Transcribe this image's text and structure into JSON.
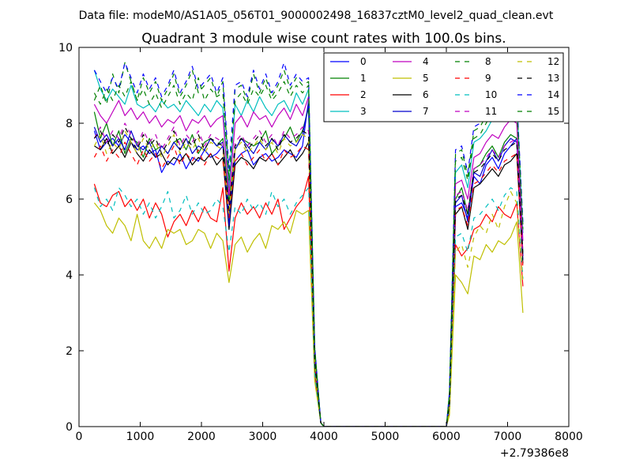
{
  "chart_data": {
    "type": "line",
    "suptitle": "Data file: modeM0/AS1A05_056T01_9000002498_16837cztM0_level2_quad_clean.evt",
    "title": "Quadrant 3 module wise count rates with 100.0s bins.",
    "xlabel": "",
    "ylabel": "",
    "x_offset_label": "+2.79386e8",
    "xlim": [
      0,
      8000
    ],
    "ylim": [
      0,
      10
    ],
    "x_ticks": [
      0,
      1000,
      2000,
      3000,
      4000,
      5000,
      6000,
      7000,
      8000
    ],
    "y_ticks": [
      0,
      2,
      4,
      6,
      8,
      10
    ],
    "grid": false,
    "legend": {
      "position": "top-right",
      "columns": 4
    },
    "x": [
      250,
      350,
      450,
      550,
      650,
      750,
      850,
      950,
      1050,
      1150,
      1250,
      1350,
      1450,
      1550,
      1650,
      1750,
      1850,
      1950,
      2050,
      2150,
      2250,
      2350,
      2450,
      2550,
      2650,
      2750,
      2850,
      2950,
      3050,
      3150,
      3250,
      3350,
      3450,
      3550,
      3650,
      3750,
      3850,
      3950,
      6050,
      6150,
      6250,
      6350,
      6450,
      6550,
      6650,
      6750,
      6850,
      6950,
      7050,
      7150,
      7250
    ],
    "series": [
      {
        "name": "0",
        "color": "#0000ff",
        "dash": "solid",
        "values": [
          7.8,
          7.3,
          7.5,
          7.6,
          7.4,
          7.7,
          7.5,
          7.3,
          7.4,
          7.2,
          7.3,
          6.7,
          7.0,
          6.9,
          7.2,
          6.8,
          7.1,
          7.0,
          7.3,
          7.1,
          7.2,
          7.4,
          5.6,
          7.0,
          7.2,
          7.3,
          6.9,
          7.1,
          7.2,
          7.0,
          7.1,
          7.3,
          7.2,
          7.1,
          7.4,
          8.6,
          1.6,
          0.1,
          0.6,
          5.8,
          5.9,
          5.5,
          6.6,
          6.4,
          6.9,
          7.1,
          6.8,
          7.2,
          7.4,
          7.6,
          4.4
        ]
      },
      {
        "name": "1",
        "color": "#008000",
        "dash": "solid",
        "values": [
          8.3,
          7.6,
          8.0,
          7.4,
          7.8,
          7.2,
          7.6,
          7.5,
          7.1,
          7.6,
          7.3,
          7.4,
          7.2,
          7.5,
          7.6,
          7.3,
          7.7,
          7.2,
          7.5,
          7.6,
          7.4,
          7.6,
          5.9,
          7.3,
          7.6,
          7.5,
          7.4,
          7.5,
          7.8,
          7.2,
          7.4,
          7.6,
          7.9,
          7.5,
          7.8,
          8.4,
          1.7,
          0.1,
          0.7,
          6.0,
          6.3,
          5.6,
          6.8,
          6.9,
          7.2,
          7.4,
          7.1,
          7.5,
          7.7,
          7.6,
          4.6
        ]
      },
      {
        "name": "2",
        "color": "#ff0000",
        "dash": "solid",
        "values": [
          6.4,
          5.9,
          5.8,
          6.1,
          6.2,
          5.8,
          6.0,
          5.7,
          6.0,
          5.5,
          5.9,
          5.6,
          5.0,
          5.4,
          5.6,
          5.3,
          5.7,
          5.4,
          5.8,
          5.5,
          5.4,
          6.3,
          4.1,
          5.5,
          5.9,
          5.6,
          5.8,
          5.5,
          5.9,
          5.6,
          6.0,
          5.2,
          5.5,
          5.8,
          6.0,
          6.6,
          1.3,
          0.1,
          0.4,
          4.8,
          4.5,
          4.7,
          5.2,
          5.3,
          5.6,
          5.4,
          5.8,
          5.6,
          5.5,
          5.9,
          3.7
        ]
      },
      {
        "name": "3",
        "color": "#00bfbf",
        "dash": "solid",
        "values": [
          9.4,
          8.9,
          8.6,
          8.9,
          8.7,
          8.5,
          9.0,
          8.5,
          8.4,
          8.5,
          8.3,
          8.6,
          8.4,
          8.5,
          8.3,
          8.6,
          8.4,
          8.2,
          8.5,
          8.3,
          8.6,
          8.4,
          6.3,
          8.5,
          8.2,
          8.6,
          8.3,
          8.7,
          8.4,
          8.2,
          8.5,
          8.6,
          8.3,
          8.8,
          8.5,
          8.9,
          2.0,
          0.1,
          0.8,
          6.7,
          6.9,
          6.3,
          7.5,
          7.6,
          7.8,
          8.1,
          8.2,
          8.6,
          8.3,
          8.7,
          5.1
        ]
      },
      {
        "name": "4",
        "color": "#bf00bf",
        "dash": "solid",
        "values": [
          8.5,
          8.2,
          8.0,
          8.3,
          8.6,
          8.2,
          8.4,
          8.1,
          8.3,
          8.0,
          8.2,
          7.9,
          8.1,
          8.0,
          8.2,
          7.8,
          8.1,
          8.0,
          8.2,
          7.9,
          8.1,
          8.2,
          6.1,
          8.0,
          8.2,
          7.9,
          8.3,
          8.1,
          8.2,
          7.9,
          8.2,
          8.4,
          8.1,
          8.5,
          8.2,
          8.7,
          1.9,
          0.1,
          0.7,
          6.4,
          6.5,
          6.0,
          7.1,
          7.2,
          7.5,
          7.7,
          7.6,
          7.9,
          8.1,
          8.0,
          4.9
        ]
      },
      {
        "name": "5",
        "color": "#bfbf00",
        "dash": "solid",
        "values": [
          5.9,
          5.7,
          5.3,
          5.1,
          5.5,
          5.3,
          4.9,
          5.6,
          4.9,
          4.7,
          5.0,
          4.7,
          5.2,
          5.1,
          5.2,
          4.8,
          4.9,
          5.2,
          5.1,
          4.7,
          5.1,
          4.9,
          3.8,
          4.8,
          5.0,
          4.6,
          4.9,
          5.1,
          4.7,
          5.3,
          5.2,
          5.4,
          5.1,
          5.7,
          5.6,
          5.7,
          1.2,
          0.1,
          0.3,
          4.0,
          3.8,
          3.5,
          4.5,
          4.4,
          4.8,
          4.6,
          4.9,
          4.8,
          5.0,
          5.4,
          3.0
        ]
      },
      {
        "name": "6",
        "color": "#000000",
        "dash": "solid",
        "values": [
          7.4,
          7.3,
          7.6,
          7.2,
          7.4,
          7.1,
          7.5,
          7.2,
          7.0,
          7.3,
          7.1,
          7.2,
          6.9,
          7.1,
          7.0,
          7.2,
          6.9,
          7.1,
          7.0,
          7.2,
          6.9,
          7.1,
          5.2,
          6.9,
          7.1,
          7.0,
          6.8,
          7.1,
          7.0,
          7.2,
          6.9,
          7.1,
          7.3,
          7.0,
          7.2,
          7.5,
          1.6,
          0.1,
          0.5,
          5.6,
          5.8,
          5.2,
          6.3,
          6.4,
          6.6,
          6.8,
          6.6,
          6.9,
          7.0,
          7.2,
          4.3
        ]
      },
      {
        "name": "7",
        "color": "#0000cd",
        "dash": "solid",
        "values": [
          7.9,
          7.5,
          7.7,
          7.4,
          7.6,
          7.3,
          7.8,
          7.4,
          7.3,
          7.5,
          7.1,
          7.4,
          7.2,
          7.5,
          7.3,
          7.6,
          7.2,
          7.4,
          7.3,
          7.6,
          7.4,
          7.5,
          5.3,
          7.3,
          7.6,
          7.4,
          7.2,
          7.5,
          7.3,
          7.6,
          7.4,
          7.7,
          7.5,
          7.4,
          7.7,
          8.5,
          1.7,
          0.1,
          0.6,
          5.9,
          6.1,
          5.4,
          6.7,
          6.6,
          7.0,
          7.3,
          7.0,
          7.4,
          7.6,
          7.5,
          4.5
        ]
      },
      {
        "name": "8",
        "color": "#008000",
        "dash": "dashed",
        "values": [
          8.6,
          9.0,
          8.5,
          9.3,
          8.8,
          9.6,
          9.1,
          8.6,
          9.2,
          8.8,
          9.1,
          8.6,
          8.9,
          9.3,
          8.7,
          9.0,
          9.4,
          8.8,
          9.0,
          9.2,
          8.7,
          9.1,
          6.6,
          8.9,
          9.0,
          8.6,
          9.3,
          8.8,
          9.2,
          8.7,
          9.0,
          9.4,
          8.9,
          9.2,
          9.0,
          9.1,
          2.1,
          0.1,
          0.9,
          7.2,
          7.3,
          6.6,
          7.8,
          7.9,
          8.2,
          8.5,
          8.4,
          8.7,
          8.8,
          8.6,
          5.3
        ]
      },
      {
        "name": "9",
        "color": "#ff0000",
        "dash": "dashed",
        "values": [
          7.1,
          7.4,
          7.0,
          7.3,
          7.1,
          7.5,
          7.2,
          6.9,
          7.3,
          7.0,
          7.2,
          6.8,
          7.1,
          7.4,
          6.9,
          7.2,
          7.0,
          7.3,
          6.9,
          7.2,
          7.1,
          7.0,
          5.5,
          7.0,
          7.2,
          6.9,
          7.1,
          7.3,
          7.0,
          7.2,
          6.9,
          7.3,
          7.1,
          7.2,
          7.4,
          7.3,
          1.6,
          0.1,
          0.5,
          5.7,
          5.8,
          5.3,
          6.4,
          6.5,
          6.7,
          6.9,
          6.7,
          7.0,
          7.1,
          7.2,
          4.2
        ]
      },
      {
        "name": "10",
        "color": "#00bfbf",
        "dash": "dashed",
        "values": [
          6.3,
          5.8,
          6.0,
          5.7,
          6.3,
          6.1,
          5.8,
          6.0,
          5.6,
          5.9,
          5.5,
          5.8,
          6.2,
          5.5,
          5.7,
          6.1,
          5.6,
          5.9,
          5.6,
          5.7,
          6.0,
          5.8,
          4.6,
          5.8,
          5.6,
          6.0,
          5.7,
          5.9,
          5.6,
          6.2,
          5.8,
          6.0,
          5.6,
          5.9,
          6.1,
          6.3,
          1.4,
          0.1,
          0.5,
          5.0,
          5.1,
          4.6,
          5.5,
          5.6,
          5.8,
          6.0,
          5.7,
          6.1,
          6.3,
          6.2,
          3.9
        ]
      },
      {
        "name": "11",
        "color": "#bf00bf",
        "dash": "dashed",
        "values": [
          7.6,
          7.9,
          7.5,
          7.8,
          7.6,
          8.0,
          7.7,
          7.4,
          7.8,
          7.5,
          7.7,
          7.3,
          7.6,
          7.9,
          7.4,
          7.7,
          7.5,
          7.8,
          7.4,
          7.7,
          7.6,
          7.5,
          5.8,
          7.5,
          7.7,
          7.4,
          7.6,
          7.8,
          7.5,
          7.7,
          7.4,
          7.8,
          7.6,
          7.7,
          7.9,
          7.8,
          1.8,
          0.1,
          0.6,
          6.1,
          6.2,
          5.7,
          6.8,
          6.9,
          7.1,
          7.3,
          7.1,
          7.4,
          7.5,
          7.6,
          4.6
        ]
      },
      {
        "name": "12",
        "color": "#bfbf00",
        "dash": "dashed",
        "values": [
          7.4,
          7.7,
          7.2,
          7.5,
          7.3,
          7.8,
          7.5,
          7.2,
          7.6,
          7.3,
          7.5,
          7.1,
          7.4,
          7.7,
          7.2,
          7.5,
          7.3,
          7.6,
          7.2,
          7.5,
          7.4,
          7.3,
          5.6,
          7.3,
          7.5,
          7.2,
          7.4,
          7.6,
          7.3,
          7.5,
          7.2,
          7.6,
          7.4,
          7.5,
          7.7,
          7.6,
          1.7,
          0.1,
          0.4,
          4.6,
          4.8,
          4.2,
          5.0,
          5.3,
          5.1,
          5.6,
          5.2,
          5.8,
          6.2,
          5.9,
          3.8
        ]
      },
      {
        "name": "13",
        "color": "#000000",
        "dash": "dashed",
        "values": [
          7.6,
          7.8,
          7.4,
          7.7,
          7.5,
          7.9,
          7.6,
          7.3,
          7.7,
          7.4,
          7.6,
          7.2,
          7.5,
          7.8,
          7.3,
          7.6,
          7.4,
          7.7,
          7.3,
          7.6,
          7.5,
          7.4,
          5.7,
          7.4,
          7.6,
          7.3,
          7.5,
          7.7,
          7.4,
          7.6,
          7.3,
          7.7,
          7.5,
          7.6,
          7.8,
          7.7,
          1.7,
          0.1,
          0.6,
          6.0,
          6.1,
          5.6,
          6.7,
          6.8,
          7.0,
          7.2,
          7.0,
          7.3,
          7.4,
          7.5,
          4.5
        ]
      },
      {
        "name": "14",
        "color": "#0000ff",
        "dash": "dashed",
        "values": [
          9.4,
          9.1,
          8.8,
          9.2,
          8.9,
          9.6,
          9.2,
          8.8,
          9.3,
          8.9,
          9.2,
          8.7,
          9.0,
          9.4,
          8.8,
          9.1,
          9.5,
          8.9,
          9.1,
          9.3,
          8.8,
          9.2,
          6.8,
          9.0,
          9.1,
          8.7,
          9.4,
          8.9,
          9.3,
          8.8,
          9.1,
          9.6,
          9.0,
          9.3,
          9.1,
          9.2,
          2.1,
          0.1,
          0.9,
          7.3,
          7.4,
          6.7,
          7.9,
          8.0,
          8.3,
          8.6,
          8.5,
          8.8,
          8.9,
          8.7,
          5.4
        ]
      },
      {
        "name": "15",
        "color": "#008000",
        "dash": "dashed",
        "values": [
          8.8,
          8.5,
          8.9,
          8.6,
          9.0,
          8.7,
          9.1,
          8.6,
          8.9,
          8.5,
          8.8,
          8.4,
          8.7,
          9.0,
          8.5,
          8.8,
          8.6,
          9.2,
          8.6,
          8.9,
          8.7,
          8.8,
          6.5,
          8.6,
          8.8,
          8.5,
          8.9,
          8.7,
          9.0,
          8.6,
          8.8,
          9.1,
          8.7,
          9.0,
          8.8,
          9.0,
          2.0,
          0.1,
          0.8,
          7.0,
          7.1,
          6.5,
          7.6,
          7.7,
          8.0,
          8.3,
          8.2,
          8.5,
          8.6,
          8.4,
          5.2
        ]
      }
    ]
  }
}
